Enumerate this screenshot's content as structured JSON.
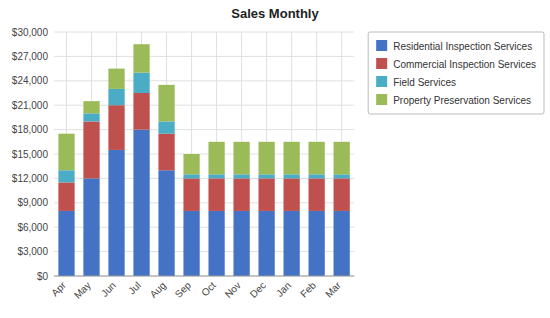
{
  "chart_data": {
    "type": "bar",
    "title": "Sales Monthly",
    "categories": [
      "Apr",
      "May",
      "Jun",
      "Jul",
      "Aug",
      "Sep",
      "Oct",
      "Nov",
      "Dec",
      "Jan",
      "Feb",
      "Mar"
    ],
    "series": [
      {
        "name": "Residential Inspection Services",
        "color": "#4472C4",
        "values": [
          8000,
          12000,
          15500,
          18000,
          13000,
          8000,
          8000,
          8000,
          8000,
          8000,
          8000,
          8000
        ]
      },
      {
        "name": "Commercial Inspection Services",
        "color": "#C0504D",
        "values": [
          3500,
          7000,
          5500,
          4500,
          4500,
          4000,
          4000,
          4000,
          4000,
          4000,
          4000,
          4000
        ]
      },
      {
        "name": "Field Services",
        "color": "#4BACC6",
        "values": [
          1500,
          1000,
          2000,
          2500,
          1500,
          500,
          500,
          500,
          500,
          500,
          500,
          500
        ]
      },
      {
        "name": "Property Preservation Services",
        "color": "#9BBB59",
        "values": [
          4500,
          1500,
          2500,
          3500,
          4500,
          2500,
          4000,
          4000,
          4000,
          4000,
          4000,
          4000
        ]
      }
    ],
    "stacked": true,
    "ylim": [
      0,
      30000
    ],
    "yticks": [
      {
        "value": 0,
        "label": "$0"
      },
      {
        "value": 3000,
        "label": "$3,000"
      },
      {
        "value": 6000,
        "label": "$6,000"
      },
      {
        "value": 9000,
        "label": "$9,000"
      },
      {
        "value": 12000,
        "label": "$12,000"
      },
      {
        "value": 15000,
        "label": "$15,000"
      },
      {
        "value": 18000,
        "label": "$18,000"
      },
      {
        "value": 21000,
        "label": "$21,000"
      },
      {
        "value": 24000,
        "label": "$24,000"
      },
      {
        "value": 27000,
        "label": "$27,000"
      },
      {
        "value": 30000,
        "label": "$30,000"
      }
    ],
    "grid": true,
    "legend": "right"
  }
}
